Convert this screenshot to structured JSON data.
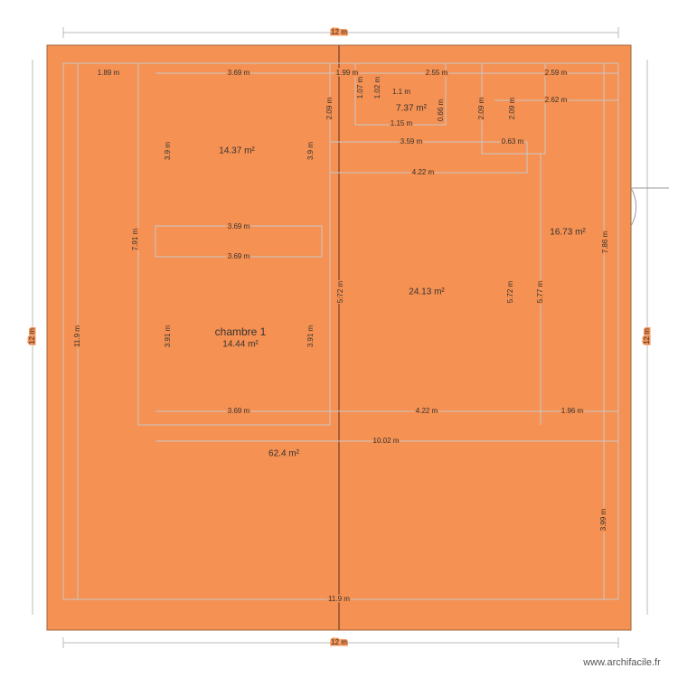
{
  "plan": {
    "overall": [
      "12 m",
      "12 m",
      "12 m",
      "12 m"
    ],
    "dimensions": [
      "1.89 m",
      "3.69 m",
      "1.99 m",
      "2.55 m",
      "2.59 m",
      "1.07 m",
      "1.02 m",
      "1.1 m",
      "0.66 m",
      "1.15 m",
      "2.09 m",
      "2.09 m",
      "2.09 m",
      "2.62 m",
      "3.9 m",
      "3.9 m",
      "3.59 m",
      "0.63 m",
      "4.22 m",
      "3.69 m",
      "3.69 m",
      "7.91 m",
      "7.86 m",
      "5.72 m",
      "5.72 m",
      "5.77 m",
      "11.9 m",
      "3.91 m",
      "3.91 m",
      "3.69 m",
      "4.22 m",
      "1.96 m",
      "10.02 m",
      "3.99 m",
      "11.9 m"
    ],
    "areas": [
      "7.37 m²",
      "14.37 m²",
      "16.73 m²",
      "24.13 m²",
      "14.44 m²",
      "62.4 m²"
    ],
    "room_name": "chambre 1"
  },
  "footer": {
    "watermark": "www.archifacile.fr"
  }
}
